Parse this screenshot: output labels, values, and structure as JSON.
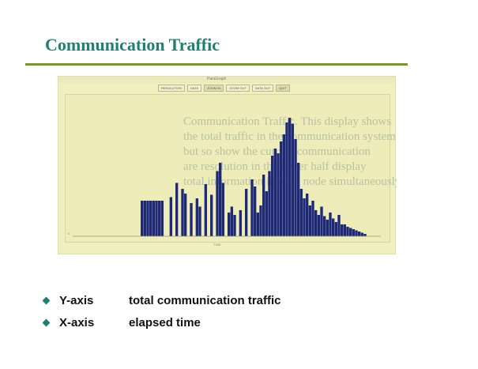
{
  "slide": {
    "title": "Communication Traffic",
    "accent_color": "#7a9a1e",
    "title_color": "#1f7f71"
  },
  "screenshot": {
    "window_title": "ParaGraph",
    "toolbar": [
      "RESOLUTION",
      "DATA",
      "ZOOM IN",
      "ZOOM OUT",
      "DATA OUT",
      "QUIT"
    ],
    "bar_color": "#1e2a78",
    "background_text_lines": [
      "Communication Traffic. This display shows",
      "the total traffic in the communication system",
      "but so show the current communication",
      "are resolution in the lower half display",
      "total information in each node simultaneously"
    ],
    "y_axis_label": "0",
    "x_axis_label": "TIME"
  },
  "chart_data": {
    "type": "bar",
    "title": "",
    "xlabel": "TIME",
    "ylabel": "",
    "ylim": [
      0,
      1
    ],
    "values": [
      0.3,
      0.3,
      0.3,
      0.3,
      0.3,
      0.3,
      0.3,
      0.3,
      0.0,
      0.0,
      0.33,
      0.0,
      0.45,
      0.0,
      0.4,
      0.36,
      0.0,
      0.28,
      0.0,
      0.32,
      0.25,
      0.0,
      0.44,
      0.0,
      0.35,
      0.0,
      0.55,
      0.62,
      0.45,
      0.0,
      0.2,
      0.25,
      0.18,
      0.0,
      0.22,
      0.0,
      0.4,
      0.0,
      0.48,
      0.42,
      0.2,
      0.26,
      0.52,
      0.38,
      0.55,
      0.68,
      0.74,
      0.7,
      0.8,
      0.86,
      0.96,
      1.0,
      0.95,
      0.82,
      0.62,
      0.4,
      0.32,
      0.36,
      0.26,
      0.3,
      0.22,
      0.18,
      0.25,
      0.17,
      0.14,
      0.2,
      0.15,
      0.12,
      0.18,
      0.1,
      0.1,
      0.08,
      0.07,
      0.06,
      0.05,
      0.04,
      0.03,
      0.02
    ]
  },
  "bullets": [
    {
      "term": "Y-axis",
      "description": "total communication traffic"
    },
    {
      "term": "X-axis",
      "description": "elapsed time"
    }
  ]
}
